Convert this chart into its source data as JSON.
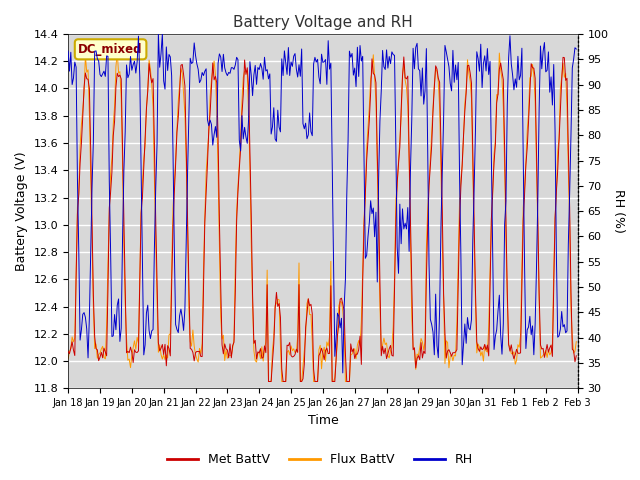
{
  "title": "Battery Voltage and RH",
  "xlabel": "Time",
  "ylabel_left": "Battery Voltage (V)",
  "ylabel_right": "RH (%)",
  "annotation": "DC_mixed",
  "ylim_left": [
    11.8,
    14.4
  ],
  "ylim_right": [
    30,
    100
  ],
  "yticks_left": [
    11.8,
    12.0,
    12.2,
    12.4,
    12.6,
    12.8,
    13.0,
    13.2,
    13.4,
    13.6,
    13.8,
    14.0,
    14.2,
    14.4
  ],
  "yticks_right": [
    30,
    35,
    40,
    45,
    50,
    55,
    60,
    65,
    70,
    75,
    80,
    85,
    90,
    95,
    100
  ],
  "color_met": "#cc0000",
  "color_flux": "#ff9900",
  "color_rh": "#0000cc",
  "bg_color": "#d8d8d8",
  "grid_color": "#ffffff",
  "legend_labels": [
    "Met BattV",
    "Flux BattV",
    "RH"
  ],
  "annotation_fg": "#8b0000",
  "annotation_bg": "#ffffcc",
  "annotation_border": "#ccaa00",
  "n_days": 16,
  "seed": 42
}
